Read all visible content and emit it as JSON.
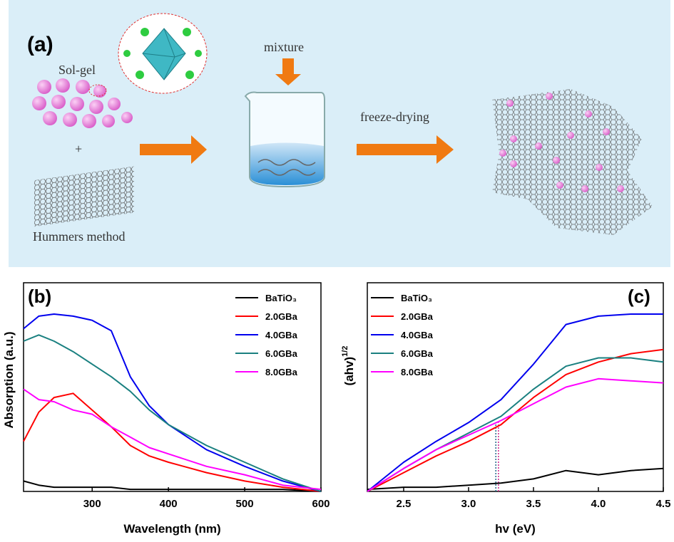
{
  "diagram": {
    "label": "(a)",
    "sol_gel": "Sol-gel",
    "plus": "+",
    "hummers": "Hummers method",
    "mixture": "mixture",
    "freeze": "freeze-drying"
  },
  "chart_data": [
    {
      "type": "line",
      "panel": "(b)",
      "x_label": "Wavelength (nm)",
      "y_label": "Absorption (a.u.)",
      "x": [
        210,
        230,
        250,
        275,
        300,
        325,
        350,
        375,
        400,
        450,
        500,
        550,
        600
      ],
      "xlim": [
        210,
        600
      ],
      "xticks": [
        300,
        400,
        500,
        600
      ],
      "ylim": [
        0,
        1
      ],
      "legend": "upper right",
      "series": [
        {
          "name": "BaTiO₃",
          "color": "#000000",
          "values": [
            0.05,
            0.03,
            0.02,
            0.02,
            0.02,
            0.02,
            0.01,
            0.01,
            0.01,
            0.01,
            0.01,
            0.01,
            0.0
          ]
        },
        {
          "name": "2.0GBa",
          "color": "#ff0000",
          "values": [
            0.24,
            0.38,
            0.45,
            0.47,
            0.39,
            0.31,
            0.22,
            0.17,
            0.14,
            0.09,
            0.05,
            0.02,
            0.0
          ]
        },
        {
          "name": "4.0GBa",
          "color": "#0000ee",
          "values": [
            0.78,
            0.84,
            0.85,
            0.84,
            0.82,
            0.77,
            0.55,
            0.41,
            0.32,
            0.2,
            0.12,
            0.05,
            0.0
          ]
        },
        {
          "name": "6.0GBa",
          "color": "#1a8080",
          "values": [
            0.72,
            0.75,
            0.72,
            0.67,
            0.61,
            0.55,
            0.48,
            0.39,
            0.32,
            0.22,
            0.14,
            0.06,
            0.0
          ]
        },
        {
          "name": "8.0GBa",
          "color": "#ff00ff",
          "values": [
            0.49,
            0.44,
            0.43,
            0.39,
            0.37,
            0.31,
            0.26,
            0.21,
            0.18,
            0.12,
            0.08,
            0.03,
            0.01
          ]
        }
      ]
    },
    {
      "type": "line",
      "panel": "(c)",
      "x_label": "hv (eV)",
      "y_label": "(ahv)",
      "y_label_sup": "1/2",
      "x": [
        2.22,
        2.5,
        2.75,
        3.0,
        3.25,
        3.5,
        3.75,
        4.0,
        4.25,
        4.5
      ],
      "xlim": [
        2.22,
        4.5
      ],
      "xticks": [
        2.5,
        {
          "value": 3,
          "label": "3.0"
        },
        3.5,
        {
          "value": 4,
          "label": "4.0"
        },
        4.5
      ],
      "ylim": [
        0,
        1
      ],
      "legend": "upper left",
      "vlines": [
        3.21,
        3.23
      ],
      "series": [
        {
          "name": "BaTiO₃",
          "color": "#000000",
          "values": [
            0.01,
            0.02,
            0.02,
            0.03,
            0.04,
            0.06,
            0.1,
            0.08,
            0.1,
            0.11
          ]
        },
        {
          "name": "2.0GBa",
          "color": "#ff0000",
          "values": [
            0.0,
            0.09,
            0.17,
            0.24,
            0.32,
            0.45,
            0.56,
            0.62,
            0.66,
            0.68
          ]
        },
        {
          "name": "4.0GBa",
          "color": "#0000ee",
          "values": [
            0.0,
            0.14,
            0.24,
            0.33,
            0.44,
            0.61,
            0.8,
            0.84,
            0.85,
            0.85
          ]
        },
        {
          "name": "6.0GBa",
          "color": "#1a8080",
          "values": [
            0.0,
            0.11,
            0.2,
            0.28,
            0.36,
            0.49,
            0.6,
            0.64,
            0.64,
            0.62
          ]
        },
        {
          "name": "8.0GBa",
          "color": "#ff00ff",
          "values": [
            0.0,
            0.11,
            0.2,
            0.27,
            0.34,
            0.42,
            0.5,
            0.54,
            0.53,
            0.52
          ]
        }
      ]
    }
  ]
}
